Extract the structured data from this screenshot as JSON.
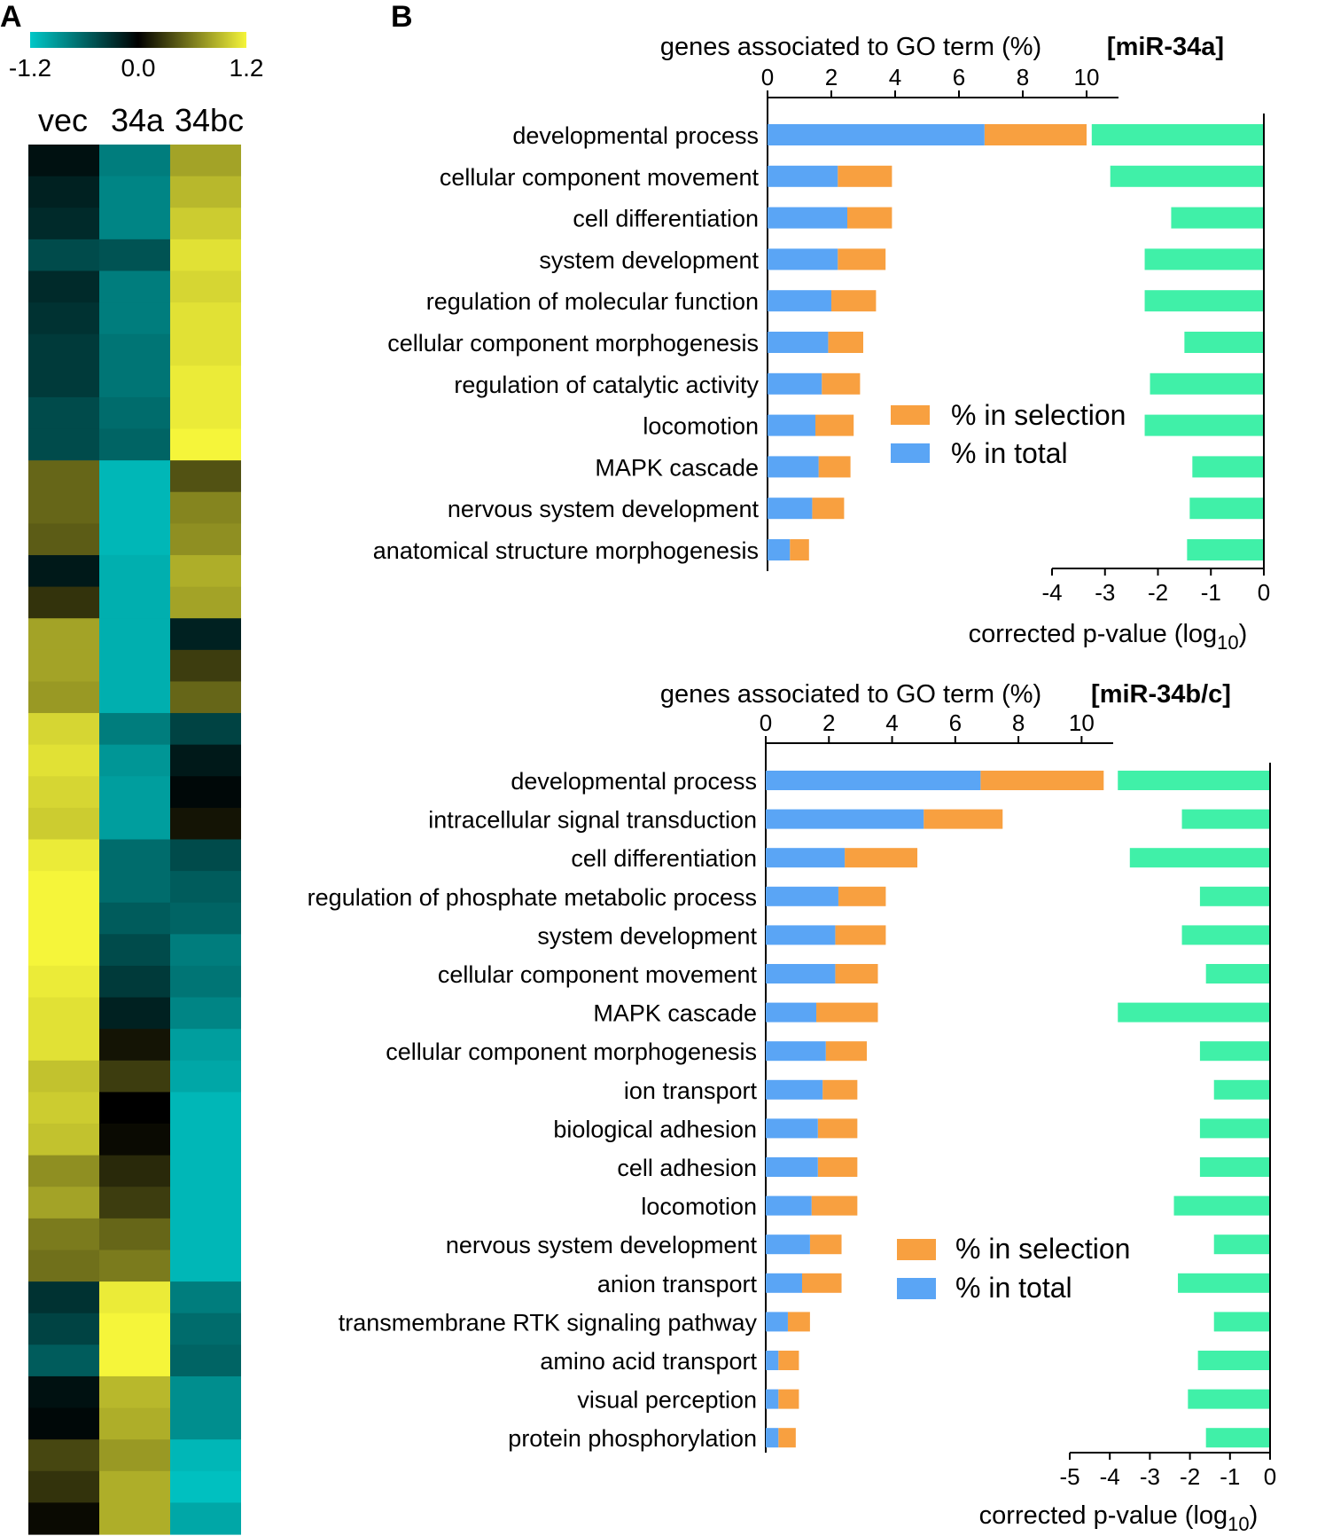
{
  "panel_labels": {
    "a": "A",
    "b": "B"
  },
  "colors": {
    "cyan": "#00c8c8",
    "black": "#000000",
    "yellow": "#f5f53a",
    "in_total": "#5aa5f5",
    "in_selection": "#f8a040",
    "pvalue": "#40f0a8"
  },
  "heatmap": {
    "scale_ticks": [
      "-1.2",
      "0.0",
      "1.2"
    ],
    "scale_range": [
      -1.2,
      1.2
    ],
    "columns": [
      "vec",
      "34a",
      "34bc"
    ],
    "rows": [
      [
        -0.1,
        -0.75,
        0.8
      ],
      [
        -0.2,
        -0.8,
        0.9
      ],
      [
        -0.25,
        -0.8,
        1.0
      ],
      [
        -0.45,
        -0.5,
        1.1
      ],
      [
        -0.25,
        -0.75,
        1.05
      ],
      [
        -0.3,
        -0.75,
        1.1
      ],
      [
        -0.35,
        -0.7,
        1.1
      ],
      [
        -0.35,
        -0.7,
        1.15
      ],
      [
        -0.45,
        -0.65,
        1.15
      ],
      [
        -0.45,
        -0.6,
        1.2
      ],
      [
        0.5,
        -1.1,
        0.4
      ],
      [
        0.5,
        -1.1,
        0.65
      ],
      [
        0.45,
        -1.1,
        0.7
      ],
      [
        -0.15,
        -1.05,
        0.85
      ],
      [
        0.25,
        -1.05,
        0.8
      ],
      [
        0.8,
        -1.05,
        -0.2
      ],
      [
        0.8,
        -1.05,
        0.3
      ],
      [
        0.75,
        -1.05,
        0.5
      ],
      [
        1.05,
        -0.75,
        -0.4
      ],
      [
        1.1,
        -0.9,
        -0.15
      ],
      [
        1.05,
        -0.95,
        -0.05
      ],
      [
        1.0,
        -0.95,
        0.1
      ],
      [
        1.15,
        -0.65,
        -0.45
      ],
      [
        1.2,
        -0.65,
        -0.55
      ],
      [
        1.2,
        -0.55,
        -0.6
      ],
      [
        1.2,
        -0.45,
        -0.75
      ],
      [
        1.15,
        -0.35,
        -0.7
      ],
      [
        1.1,
        -0.2,
        -0.8
      ],
      [
        1.1,
        0.1,
        -0.95
      ],
      [
        0.95,
        0.3,
        -1.0
      ],
      [
        1.0,
        0.0,
        -1.1
      ],
      [
        0.95,
        0.05,
        -1.1
      ],
      [
        0.7,
        0.2,
        -1.1
      ],
      [
        0.8,
        0.3,
        -1.1
      ],
      [
        0.6,
        0.5,
        -1.1
      ],
      [
        0.55,
        0.6,
        -1.1
      ],
      [
        -0.3,
        1.15,
        -0.75
      ],
      [
        -0.4,
        1.2,
        -0.65
      ],
      [
        -0.55,
        1.2,
        -0.6
      ],
      [
        -0.1,
        0.9,
        -0.85
      ],
      [
        -0.05,
        0.85,
        -0.85
      ],
      [
        0.35,
        0.75,
        -1.1
      ],
      [
        0.25,
        0.85,
        -1.15
      ],
      [
        0.05,
        0.85,
        -1.0
      ]
    ]
  },
  "chart_data": [
    {
      "type": "bar",
      "title": "genes associated to GO term (%)",
      "tag": "[miR-34a]",
      "xlabel_top": "genes associated to GO term (%)",
      "xlim_top": [
        0,
        11
      ],
      "xticks_top": [
        "0",
        "2",
        "4",
        "6",
        "8",
        "10"
      ],
      "xlabel_bottom": "corrected p-value (log",
      "xlabel_bottom_sub": "10",
      "xlim_bottom": [
        -4,
        0
      ],
      "xticks_bottom": [
        "-4",
        "-3",
        "-2",
        "-1",
        "0"
      ],
      "legend": [
        "% in selection",
        "% in total"
      ],
      "categories": [
        "developmental process",
        "cellular component movement",
        "cell differentiation",
        "system development",
        "regulation of molecular function",
        "cellular component morphogenesis",
        "regulation of catalytic activity",
        "locomotion",
        "MAPK cascade",
        "nervous system development",
        "anatomical structure morphogenesis"
      ],
      "series": [
        {
          "name": "% in total",
          "values": [
            6.8,
            2.2,
            2.5,
            2.2,
            2.0,
            1.9,
            1.7,
            1.5,
            1.6,
            1.4,
            0.7
          ]
        },
        {
          "name": "% in selection",
          "values": [
            10.0,
            3.9,
            3.9,
            3.7,
            3.4,
            3.0,
            2.9,
            2.7,
            2.6,
            2.4,
            1.3
          ]
        },
        {
          "name": "corrected p-value (log10)",
          "values": [
            -3.25,
            -2.9,
            -1.75,
            -2.25,
            -2.25,
            -1.5,
            -2.15,
            -2.25,
            -1.35,
            -1.4,
            -1.45
          ]
        }
      ]
    },
    {
      "type": "bar",
      "title": "genes associated to GO term (%)",
      "tag": "[miR-34b/c]",
      "xlabel_top": "genes associated to GO term (%)",
      "xlim_top": [
        0,
        11
      ],
      "xticks_top": [
        "0",
        "2",
        "4",
        "6",
        "8",
        "10"
      ],
      "xlabel_bottom": "corrected p-value (log",
      "xlabel_bottom_sub": "10",
      "xlim_bottom": [
        -5,
        0
      ],
      "xticks_bottom": [
        "-5",
        "-4",
        "-3",
        "-2",
        "-1",
        "0"
      ],
      "legend": [
        "% in selection",
        "% in total"
      ],
      "categories": [
        "developmental process",
        "intracellular signal transduction",
        "cell differentiation",
        "regulation of phosphate metabolic process",
        "system development",
        "cellular component movement",
        "MAPK cascade",
        "cellular component morphogenesis",
        "ion transport",
        "biological adhesion",
        "cell adhesion",
        "locomotion",
        "nervous system development",
        "anion transport",
        "transmembrane RTK signaling pathway",
        "amino acid transport",
        "visual perception",
        "protein phosphorylation"
      ],
      "series": [
        {
          "name": "% in total",
          "values": [
            6.8,
            5.0,
            2.5,
            2.3,
            2.2,
            2.2,
            1.6,
            1.9,
            1.8,
            1.65,
            1.65,
            1.45,
            1.4,
            1.15,
            0.7,
            0.4,
            0.4,
            0.4
          ]
        },
        {
          "name": "% in selection",
          "values": [
            10.7,
            7.5,
            4.8,
            3.8,
            3.8,
            3.55,
            3.55,
            3.2,
            2.9,
            2.9,
            2.9,
            2.9,
            2.4,
            2.4,
            1.4,
            1.05,
            1.05,
            0.95
          ]
        },
        {
          "name": "corrected p-value (log10)",
          "values": [
            -3.8,
            -2.2,
            -3.5,
            -1.75,
            -2.2,
            -1.6,
            -3.8,
            -1.75,
            -1.4,
            -1.75,
            -1.75,
            -2.4,
            -1.4,
            -2.3,
            -1.4,
            -1.8,
            -2.05,
            -1.6
          ]
        }
      ]
    }
  ]
}
